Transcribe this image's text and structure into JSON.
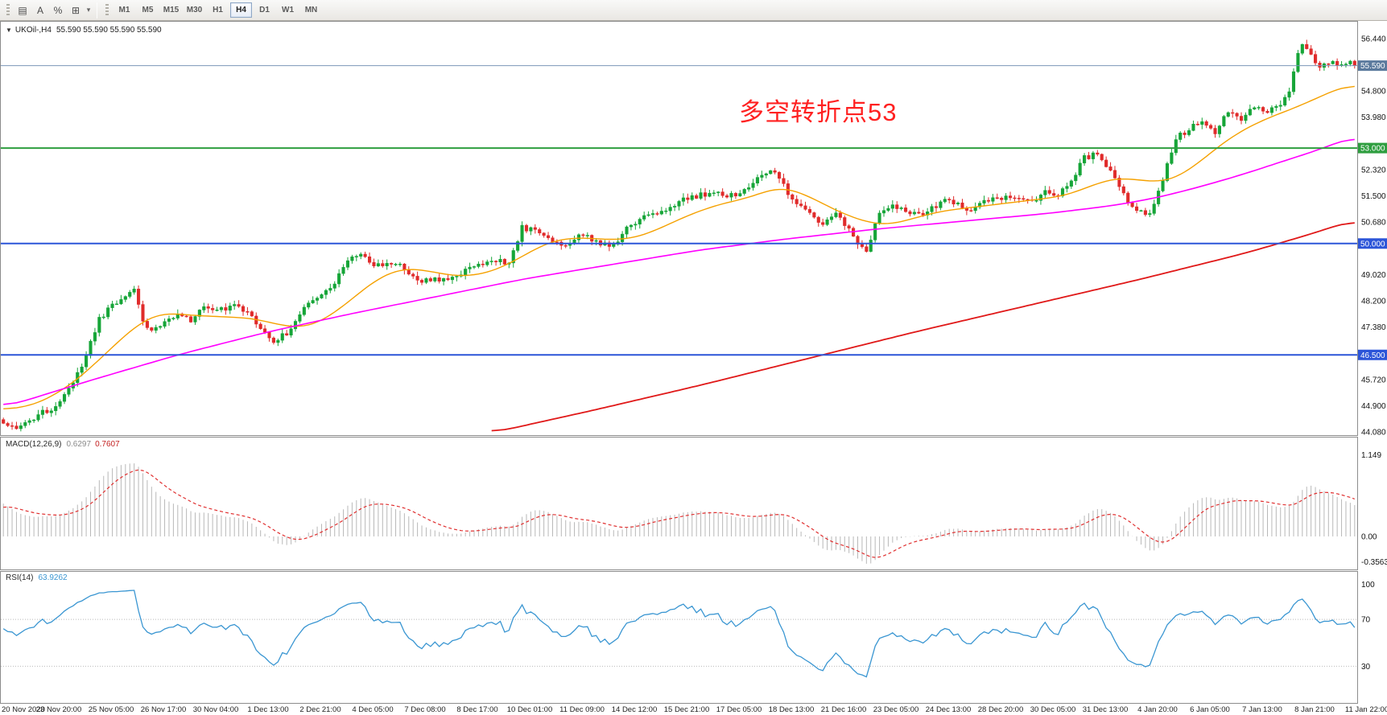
{
  "toolbar": {
    "tools": [
      {
        "name": "chart-window-icon",
        "glyph": "▤"
      },
      {
        "name": "text-label-icon",
        "glyph": "A"
      },
      {
        "name": "fibonacci-tool-icon",
        "glyph": "%"
      },
      {
        "name": "drawing-tools-icon",
        "glyph": "⊞"
      },
      {
        "name": "dropdown-caret-icon",
        "glyph": "▾"
      }
    ],
    "timeframes": [
      "M1",
      "M5",
      "M15",
      "M30",
      "H1",
      "H4",
      "D1",
      "W1",
      "MN"
    ],
    "active_timeframe": "H4"
  },
  "chart": {
    "header": {
      "collapse_icon": "▼",
      "symbol": "UKOil-,H4",
      "ohlc": "55.590 55.590 55.590 55.590"
    },
    "annotation": {
      "text": "多空转折点53",
      "color": "#ff2121"
    }
  },
  "chart_data": {
    "type": "candlestick",
    "symbol": "UKOil-",
    "timeframe": "H4",
    "last_price": 55.59,
    "num_candles": 311,
    "noise": 0.09,
    "candle_colors": {
      "up": "#16a538",
      "down": "#e02b2b"
    },
    "price_axis": {
      "min": 44.08,
      "max": 56.44,
      "step": 0.82,
      "labels": [
        {
          "text": "56.440",
          "value": 56.44
        },
        {
          "text": "54.800",
          "value": 54.8
        },
        {
          "text": "53.980",
          "value": 53.98
        },
        {
          "text": "52.320",
          "value": 52.32
        },
        {
          "text": "51.500",
          "value": 51.5
        },
        {
          "text": "50.680",
          "value": 50.68
        },
        {
          "text": "49.020",
          "value": 49.02
        },
        {
          "text": "48.200",
          "value": 48.2
        },
        {
          "text": "47.380",
          "value": 47.38
        },
        {
          "text": "45.720",
          "value": 45.72
        },
        {
          "text": "44.900",
          "value": 44.9
        },
        {
          "text": "44.080",
          "value": 44.08
        }
      ]
    },
    "time_axis": {
      "labels": [
        "20 Nov 2020",
        "23 Nov 20:00",
        "25 Nov 05:00",
        "26 Nov 17:00",
        "30 Nov 04:00",
        "1 Dec 13:00",
        "2 Dec 21:00",
        "4 Dec 05:00",
        "7 Dec 08:00",
        "8 Dec 17:00",
        "10 Dec 01:00",
        "11 Dec 09:00",
        "14 Dec 12:00",
        "15 Dec 21:00",
        "17 Dec 05:00",
        "18 Dec 13:00",
        "21 Dec 16:00",
        "23 Dec 05:00",
        "24 Dec 13:00",
        "28 Dec 20:00",
        "30 Dec 05:00",
        "31 Dec 13:00",
        "4 Jan 20:00",
        "6 Jan 05:00",
        "7 Jan 13:00",
        "8 Jan 21:00",
        "11 Jan 22:00"
      ]
    },
    "levels": [
      {
        "name": "current-price-line",
        "value": 55.59,
        "label": "55.590",
        "line_color": "#7b96b8",
        "badge_color": "#5b7a9d",
        "width": 1
      },
      {
        "name": "resistance-line-53",
        "value": 53.0,
        "label": "53.000",
        "line_color": "#2e9e3f",
        "badge_color": "#2e9e3f",
        "width": 2
      },
      {
        "name": "round-level-50",
        "value": 50.0,
        "label": "50.000",
        "line_color": "#2c55d8",
        "badge_color": "#2c55d8",
        "width": 2
      },
      {
        "name": "support-line-46-5",
        "value": 46.5,
        "label": "46.500",
        "line_color": "#2c55d8",
        "badge_color": "#2c55d8",
        "width": 2
      }
    ],
    "close_anchors": [
      [
        0,
        44.35
      ],
      [
        4,
        44.2
      ],
      [
        8,
        44.6
      ],
      [
        12,
        44.9
      ],
      [
        15,
        45.4
      ],
      [
        18,
        46.1
      ],
      [
        20,
        46.9
      ],
      [
        22,
        47.6
      ],
      [
        24,
        47.9
      ],
      [
        27,
        48.3
      ],
      [
        30,
        48.5
      ],
      [
        32,
        47.6
      ],
      [
        34,
        47.2
      ],
      [
        37,
        47.6
      ],
      [
        40,
        47.8
      ],
      [
        43,
        47.6
      ],
      [
        46,
        48
      ],
      [
        50,
        47.9
      ],
      [
        53,
        48.1
      ],
      [
        56,
        47.8
      ],
      [
        59,
        47.4
      ],
      [
        62,
        46.9
      ],
      [
        65,
        47.2
      ],
      [
        68,
        47.8
      ],
      [
        72,
        48.3
      ],
      [
        76,
        48.8
      ],
      [
        79,
        49.5
      ],
      [
        82,
        49.6
      ],
      [
        86,
        49.3
      ],
      [
        90,
        49.4
      ],
      [
        93,
        49.1
      ],
      [
        96,
        48.8
      ],
      [
        100,
        48.9
      ],
      [
        104,
        49
      ],
      [
        108,
        49.3
      ],
      [
        112,
        49.5
      ],
      [
        116,
        49.4
      ],
      [
        119,
        50.5
      ],
      [
        122,
        50.4
      ],
      [
        125,
        50.2
      ],
      [
        129,
        49.9
      ],
      [
        133,
        50.3
      ],
      [
        137,
        50
      ],
      [
        140,
        49.9
      ],
      [
        143,
        50.5
      ],
      [
        147,
        50.8
      ],
      [
        151,
        51
      ],
      [
        155,
        51.3
      ],
      [
        159,
        51.5
      ],
      [
        163,
        51.6
      ],
      [
        167,
        51.5
      ],
      [
        171,
        51.7
      ],
      [
        174,
        52.2
      ],
      [
        176,
        52.35
      ],
      [
        179,
        51.8
      ],
      [
        182,
        51.2
      ],
      [
        185,
        50.9
      ],
      [
        188,
        50.6
      ],
      [
        191,
        50.9
      ],
      [
        194,
        50.4
      ],
      [
        196,
        50
      ],
      [
        198,
        49.8
      ],
      [
        201,
        51
      ],
      [
        204,
        51.2
      ],
      [
        207,
        51
      ],
      [
        210,
        50.9
      ],
      [
        213,
        51.1
      ],
      [
        216,
        51.4
      ],
      [
        219,
        51.2
      ],
      [
        222,
        51
      ],
      [
        225,
        51.3
      ],
      [
        228,
        51.4
      ],
      [
        232,
        51.5
      ],
      [
        236,
        51.3
      ],
      [
        239,
        51.6
      ],
      [
        242,
        51.5
      ],
      [
        245,
        52
      ],
      [
        248,
        52.7
      ],
      [
        251,
        52.8
      ],
      [
        254,
        52.3
      ],
      [
        257,
        51.5
      ],
      [
        260,
        51
      ],
      [
        263,
        50.9
      ],
      [
        266,
        52
      ],
      [
        269,
        53.3
      ],
      [
        272,
        53.6
      ],
      [
        275,
        53.9
      ],
      [
        278,
        53.5
      ],
      [
        281,
        54.2
      ],
      [
        284,
        53.9
      ],
      [
        287,
        54.3
      ],
      [
        290,
        54.1
      ],
      [
        293,
        54.4
      ],
      [
        295,
        54.8
      ],
      [
        297,
        55.9
      ],
      [
        298,
        56.2
      ],
      [
        300,
        55.9
      ],
      [
        302,
        55.5
      ],
      [
        304,
        55.7
      ],
      [
        306,
        55.6
      ],
      [
        308,
        55.7
      ],
      [
        310,
        55.59
      ]
    ],
    "moving_averages": [
      {
        "name": "ma-fast-orange",
        "color": "#f5a100",
        "width": 1.4,
        "anchors": [
          [
            0,
            44.75
          ],
          [
            8,
            44.95
          ],
          [
            16,
            45.6
          ],
          [
            24,
            46.6
          ],
          [
            30,
            47.4
          ],
          [
            36,
            47.85
          ],
          [
            42,
            47.75
          ],
          [
            50,
            47.7
          ],
          [
            58,
            47.65
          ],
          [
            64,
            47.4
          ],
          [
            70,
            47.35
          ],
          [
            76,
            47.8
          ],
          [
            82,
            48.5
          ],
          [
            88,
            49.1
          ],
          [
            94,
            49.25
          ],
          [
            100,
            49.05
          ],
          [
            106,
            48.95
          ],
          [
            112,
            49.1
          ],
          [
            118,
            49.5
          ],
          [
            124,
            50
          ],
          [
            130,
            50.2
          ],
          [
            136,
            50.15
          ],
          [
            142,
            50.1
          ],
          [
            148,
            50.3
          ],
          [
            154,
            50.7
          ],
          [
            160,
            51.05
          ],
          [
            166,
            51.3
          ],
          [
            172,
            51.45
          ],
          [
            176,
            51.75
          ],
          [
            180,
            51.75
          ],
          [
            184,
            51.55
          ],
          [
            190,
            51.1
          ],
          [
            196,
            50.75
          ],
          [
            202,
            50.55
          ],
          [
            208,
            50.75
          ],
          [
            214,
            51
          ],
          [
            220,
            51.1
          ],
          [
            226,
            51.2
          ],
          [
            232,
            51.3
          ],
          [
            238,
            51.4
          ],
          [
            244,
            51.5
          ],
          [
            250,
            51.85
          ],
          [
            256,
            52.1
          ],
          [
            262,
            51.95
          ],
          [
            268,
            51.95
          ],
          [
            274,
            52.5
          ],
          [
            280,
            53.2
          ],
          [
            286,
            53.7
          ],
          [
            292,
            54.05
          ],
          [
            298,
            54.35
          ],
          [
            304,
            54.75
          ],
          [
            310,
            55.05
          ]
        ]
      },
      {
        "name": "ma-mid-magenta",
        "color": "#ff00ff",
        "width": 1.6,
        "anchors": [
          [
            0,
            44.85
          ],
          [
            20,
            45.7
          ],
          [
            40,
            46.5
          ],
          [
            60,
            47.2
          ],
          [
            80,
            47.8
          ],
          [
            100,
            48.35
          ],
          [
            120,
            48.9
          ],
          [
            140,
            49.35
          ],
          [
            160,
            49.8
          ],
          [
            180,
            50.15
          ],
          [
            200,
            50.45
          ],
          [
            220,
            50.7
          ],
          [
            240,
            50.95
          ],
          [
            255,
            51.2
          ],
          [
            265,
            51.45
          ],
          [
            275,
            51.8
          ],
          [
            285,
            52.2
          ],
          [
            295,
            52.65
          ],
          [
            303,
            53
          ],
          [
            310,
            53.4
          ]
        ]
      },
      {
        "name": "ma-slow-red",
        "color": "#e01818",
        "width": 1.8,
        "anchors": [
          [
            112,
            44.05
          ],
          [
            135,
            44.75
          ],
          [
            160,
            45.55
          ],
          [
            185,
            46.4
          ],
          [
            210,
            47.25
          ],
          [
            235,
            48.05
          ],
          [
            260,
            48.85
          ],
          [
            285,
            49.7
          ],
          [
            300,
            50.3
          ],
          [
            310,
            50.75
          ]
        ]
      }
    ],
    "macd": {
      "label": "MACD(12,26,9)",
      "value_main": "0.6297",
      "value_signal": "0.7607",
      "params": [
        12,
        26,
        9
      ],
      "hist_color": "#b8b8b8",
      "signal_color": "#e03030",
      "range": [
        -0.42,
        1.35
      ],
      "axis_labels": [
        {
          "text": "1.149",
          "value": 1.149
        },
        {
          "text": "0.00",
          "value": 0
        },
        {
          "text": "-0.3563",
          "value": -0.3563
        }
      ]
    },
    "rsi": {
      "label": "RSI(14)",
      "value": "63.9262",
      "period": 14,
      "color": "#3a96d2",
      "levels": [
        70,
        30
      ],
      "range": [
        0,
        110
      ],
      "axis_labels": [
        {
          "text": "100",
          "value": 100
        },
        {
          "text": "70",
          "value": 70
        },
        {
          "text": "30",
          "value": 30
        }
      ]
    }
  }
}
